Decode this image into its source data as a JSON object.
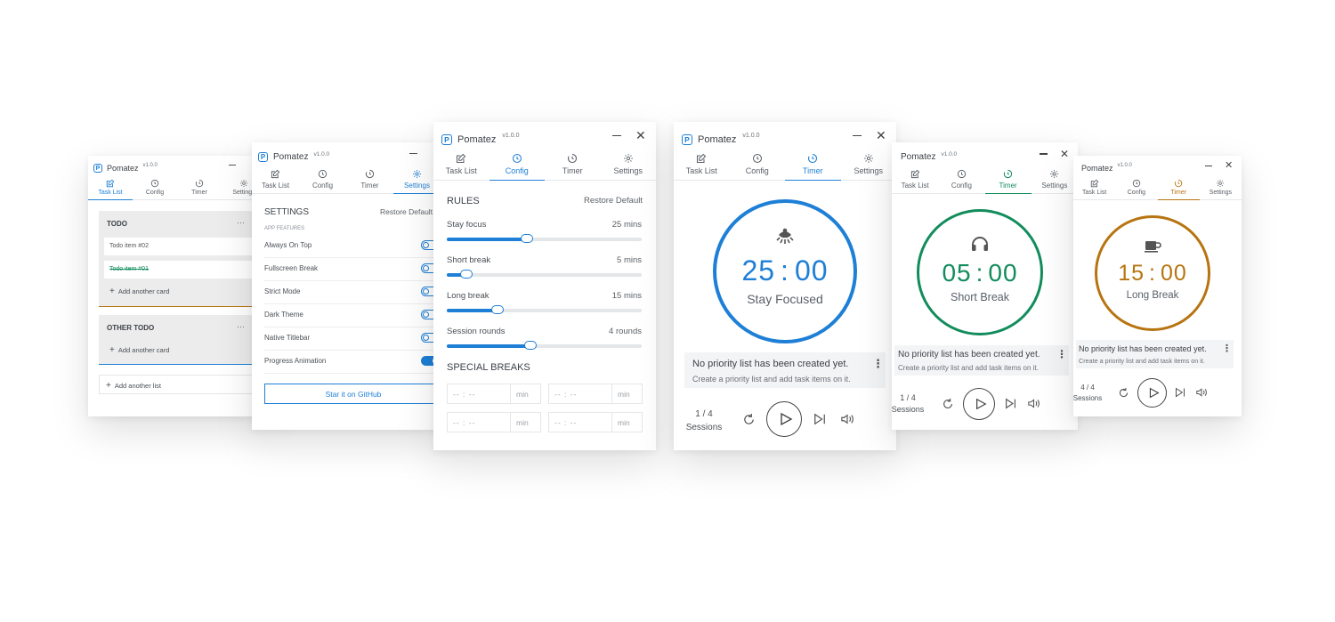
{
  "app": {
    "name": "Pomatez",
    "version": "v1.0.0",
    "logo_letter": "P"
  },
  "colors": {
    "focus": "#1e7fd6",
    "short": "#128c5c",
    "long": "#b77410"
  },
  "tabs": [
    "Task List",
    "Config",
    "Timer",
    "Settings"
  ],
  "tasklist": {
    "lists": [
      {
        "title": "TODO",
        "items": [
          {
            "text": "Todo item #02",
            "done": false
          },
          {
            "text": "Todo item #01",
            "done": true
          }
        ],
        "add_card": "Add another card"
      },
      {
        "title": "OTHER TODO",
        "items": [],
        "add_card": "Add another card"
      }
    ],
    "add_list": "Add another list",
    "menu": "···"
  },
  "settings": {
    "title": "SETTINGS",
    "restore": "Restore Default",
    "section": "APP FEATURES",
    "options": [
      "Always On Top",
      "Fullscreen Break",
      "Strict Mode",
      "Dark Theme",
      "Native Titlebar",
      "Progress Animation"
    ],
    "github": "Star it on GitHub"
  },
  "config": {
    "rules_title": "RULES",
    "restore": "Restore Default",
    "sliders": [
      {
        "label": "Stay focus",
        "value": "25 mins",
        "fraction": 0.41
      },
      {
        "label": "Short break",
        "value": "5 mins",
        "fraction": 0.1
      },
      {
        "label": "Long break",
        "value": "15 mins",
        "fraction": 0.26
      },
      {
        "label": "Session rounds",
        "value": "4 rounds",
        "fraction": 0.43
      }
    ],
    "special_title": "SPECIAL BREAKS",
    "time_placeholder": "-- : --",
    "min_label": "min"
  },
  "timers": [
    {
      "time_min": "25",
      "time_sec": "00",
      "label": "Stay Focused",
      "icon": "focus-icon",
      "sessions": "1 / 4",
      "sessions_label": "Sessions"
    },
    {
      "time_min": "05",
      "time_sec": "00",
      "label": "Short Break",
      "icon": "headphones-icon",
      "sessions": "1 / 4",
      "sessions_label": "Sessions"
    },
    {
      "time_min": "15",
      "time_sec": "00",
      "label": "Long Break",
      "icon": "coffee-icon",
      "sessions": "4 / 4",
      "sessions_label": "Sessions"
    }
  ],
  "priority": {
    "title": "No priority list has been created yet.",
    "subtitle": "Create a priority list and add task items on it."
  }
}
